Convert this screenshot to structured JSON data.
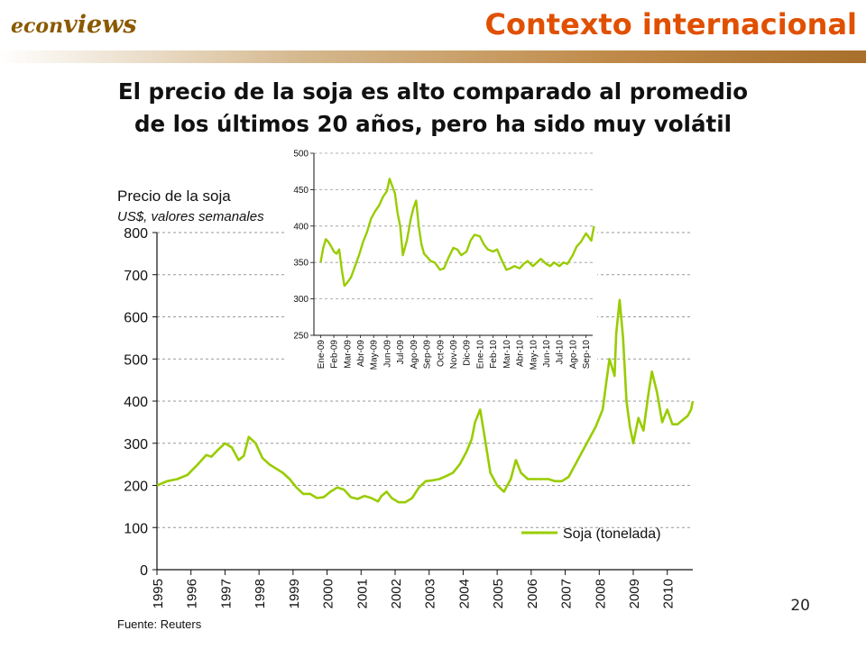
{
  "header": {
    "logo_part1": "econ",
    "logo_part2": "views",
    "section_title": "Contexto internacional"
  },
  "heading": {
    "line1": "El precio de la soja es alto comparado al promedio",
    "line2": "de los últimos 20 años, pero ha sido muy volátil"
  },
  "page_number": "20",
  "colors": {
    "section_title": "#e05000",
    "logo": "#8a5a00",
    "header_rule": "#c08b4a",
    "series": "#99cc00",
    "grid": "#999999",
    "text": "#111111"
  },
  "chart_data": [
    {
      "type": "line",
      "title": "Precio de la soja",
      "subtitle": "US$, valores semanales",
      "source": "Fuente: Reuters",
      "ylim": [
        0,
        800
      ],
      "yticks": [
        0,
        100,
        200,
        300,
        400,
        500,
        600,
        700,
        800
      ],
      "xlim": [
        1995,
        2010.75
      ],
      "xticks": [
        "1995",
        "1996",
        "1997",
        "1998",
        "1999",
        "2000",
        "2001",
        "2002",
        "2003",
        "2004",
        "2005",
        "2006",
        "2007",
        "2008",
        "2009",
        "2010"
      ],
      "grid": "horizontal dashed",
      "legend": {
        "position": "bottom-right",
        "entries": [
          "Soja (tonelada)"
        ]
      },
      "series": [
        {
          "name": "Soja (tonelada)",
          "x": [
            1995.0,
            1995.3,
            1995.6,
            1995.9,
            1996.2,
            1996.45,
            1996.6,
            1996.8,
            1997.0,
            1997.2,
            1997.4,
            1997.55,
            1997.7,
            1997.9,
            1998.1,
            1998.3,
            1998.5,
            1998.7,
            1998.9,
            1999.1,
            1999.3,
            1999.5,
            1999.7,
            1999.9,
            2000.1,
            2000.3,
            2000.5,
            2000.7,
            2000.9,
            2001.1,
            2001.3,
            2001.5,
            2001.6,
            2001.75,
            2001.9,
            2002.1,
            2002.3,
            2002.5,
            2002.7,
            2002.9,
            2003.1,
            2003.3,
            2003.5,
            2003.7,
            2003.9,
            2004.1,
            2004.25,
            2004.35,
            2004.5,
            2004.6,
            2004.8,
            2005.0,
            2005.2,
            2005.4,
            2005.55,
            2005.7,
            2005.9,
            2006.1,
            2006.3,
            2006.5,
            2006.7,
            2006.9,
            2007.1,
            2007.3,
            2007.5,
            2007.7,
            2007.9,
            2008.1,
            2008.2,
            2008.3,
            2008.45,
            2008.5,
            2008.6,
            2008.7,
            2008.8,
            2008.9,
            2009.0,
            2009.15,
            2009.3,
            2009.45,
            2009.55,
            2009.7,
            2009.85,
            2010.0,
            2010.15,
            2010.3,
            2010.45,
            2010.6,
            2010.7,
            2010.75
          ],
          "y": [
            200,
            210,
            215,
            225,
            250,
            272,
            268,
            285,
            300,
            290,
            260,
            270,
            315,
            300,
            265,
            250,
            240,
            230,
            215,
            195,
            180,
            180,
            170,
            172,
            185,
            195,
            190,
            172,
            168,
            175,
            170,
            162,
            175,
            185,
            170,
            160,
            160,
            170,
            195,
            210,
            212,
            215,
            222,
            230,
            250,
            280,
            310,
            350,
            380,
            330,
            230,
            200,
            185,
            215,
            260,
            230,
            215,
            215,
            215,
            215,
            210,
            210,
            220,
            250,
            280,
            310,
            340,
            380,
            440,
            500,
            460,
            560,
            640,
            550,
            400,
            340,
            300,
            360,
            330,
            420,
            470,
            420,
            350,
            380,
            345,
            345,
            355,
            365,
            380,
            400
          ]
        }
      ]
    },
    {
      "type": "line",
      "title": "",
      "ylim": [
        250,
        500
      ],
      "yticks": [
        250,
        300,
        350,
        400,
        450,
        500
      ],
      "xticks": [
        "Ene-09",
        "Feb-09",
        "Mar-09",
        "Abr-09",
        "May-09",
        "Jun-09",
        "Jul-09",
        "Ago-09",
        "Sep-09",
        "Oct-09",
        "Nov-09",
        "Dic-09",
        "Ene-10",
        "Feb-10",
        "Mar-10",
        "Abr-10",
        "May-10",
        "Jun-10",
        "Jul-10",
        "Ago-10",
        "Sep-10"
      ],
      "grid": "horizontal dashed",
      "series": [
        {
          "name": "",
          "x": [
            0,
            0.2,
            0.4,
            0.6,
            0.8,
            1.0,
            1.2,
            1.4,
            1.6,
            1.8,
            2.0,
            2.3,
            2.6,
            2.9,
            3.2,
            3.5,
            3.8,
            4.1,
            4.4,
            4.7,
            5.0,
            5.2,
            5.4,
            5.6,
            5.8,
            6.0,
            6.2,
            6.5,
            6.8,
            7.0,
            7.2,
            7.4,
            7.6,
            7.8,
            8.0,
            8.3,
            8.6,
            9.0,
            9.3,
            9.6,
            10.0,
            10.3,
            10.6,
            11.0,
            11.3,
            11.6,
            12.0,
            12.3,
            12.6,
            13.0,
            13.3,
            13.6,
            14.0,
            14.3,
            14.6,
            15.0,
            15.3,
            15.6,
            16.0,
            16.3,
            16.6,
            17.0,
            17.3,
            17.6,
            18.0,
            18.3,
            18.6,
            19.0,
            19.3,
            19.6,
            20.0,
            20.2,
            20.4,
            20.6
          ],
          "y": [
            350,
            370,
            382,
            378,
            372,
            365,
            362,
            368,
            340,
            318,
            322,
            330,
            345,
            360,
            378,
            392,
            410,
            420,
            428,
            440,
            448,
            465,
            455,
            445,
            418,
            400,
            360,
            380,
            410,
            425,
            435,
            400,
            375,
            362,
            358,
            352,
            350,
            340,
            342,
            355,
            370,
            368,
            360,
            365,
            380,
            388,
            386,
            375,
            368,
            365,
            368,
            355,
            340,
            342,
            345,
            342,
            348,
            352,
            345,
            350,
            355,
            348,
            345,
            350,
            345,
            350,
            348,
            360,
            372,
            378,
            390,
            385,
            380,
            400
          ]
        }
      ]
    }
  ]
}
